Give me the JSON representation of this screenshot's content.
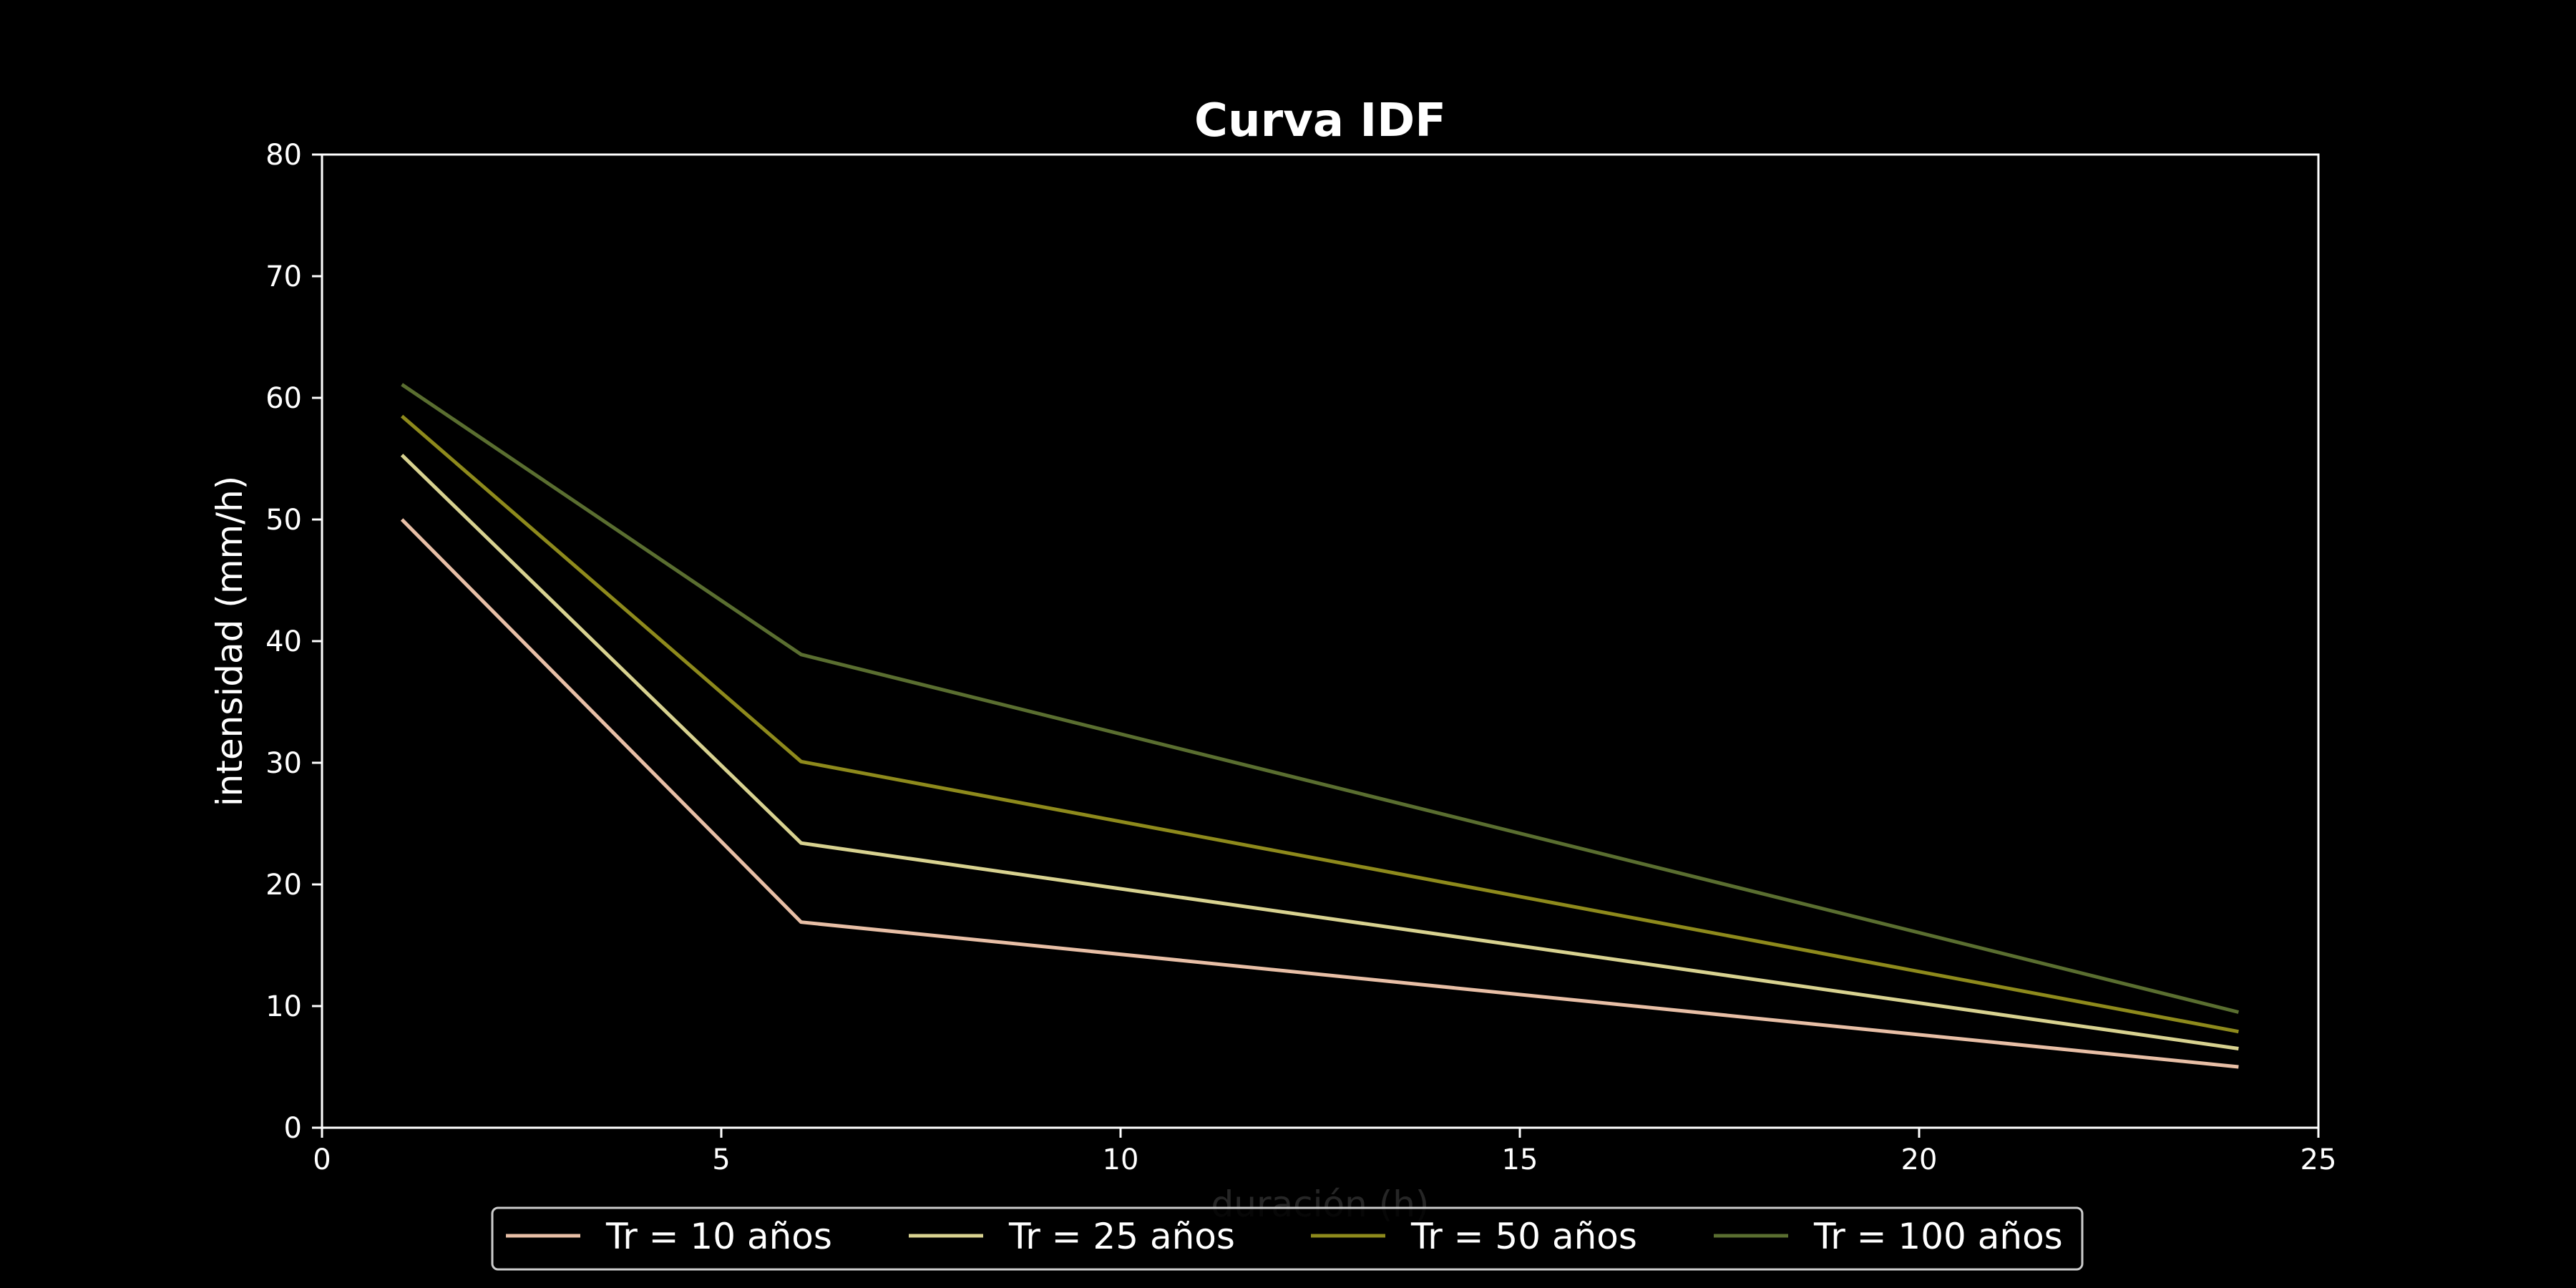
{
  "chart_data": {
    "type": "line",
    "title": "Curva IDF",
    "xlabel": "duración (h)",
    "ylabel": "intensidad (mm/h)",
    "xlim": [
      0,
      25
    ],
    "ylim": [
      0,
      80
    ],
    "xticks": [
      0,
      5,
      10,
      15,
      20,
      25
    ],
    "yticks": [
      0,
      10,
      20,
      30,
      40,
      50,
      60,
      70,
      80
    ],
    "grid": false,
    "legend_position": "bottom-center",
    "x": [
      1,
      6,
      24
    ],
    "series": [
      {
        "name": "Tr = 10 años",
        "values": [
          50.0,
          16.9,
          5.0
        ],
        "color": "#e8bfa6"
      },
      {
        "name": "Tr = 25 años",
        "values": [
          55.3,
          23.4,
          6.5
        ],
        "color": "#d8d290"
      },
      {
        "name": "Tr = 50 años",
        "values": [
          58.5,
          30.1,
          7.9
        ],
        "color": "#8e8a1c"
      },
      {
        "name": "Tr = 100 años",
        "values": [
          61.1,
          38.9,
          9.5
        ],
        "color": "#5a6e30"
      }
    ]
  }
}
